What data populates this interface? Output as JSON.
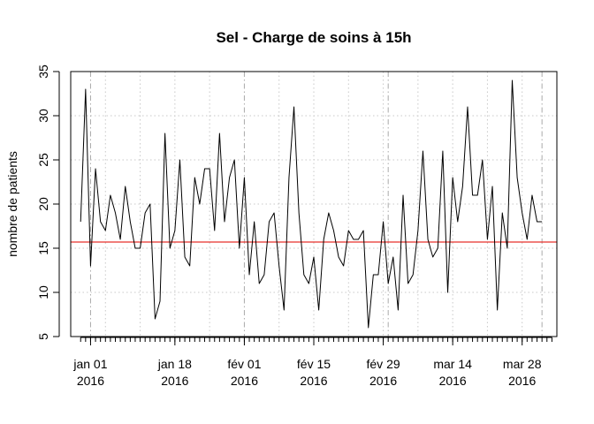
{
  "chart_data": {
    "type": "line",
    "title": "Sel - Charge de soins à 15h",
    "xlabel": "",
    "ylabel": "nombre de patients",
    "x_start": "2015-12-30",
    "x_end": "2016-04-03",
    "xlim": [
      "2015-12-28",
      "2016-04-04"
    ],
    "ylim": [
      5,
      35
    ],
    "y_ticks": [
      5,
      10,
      15,
      20,
      25,
      30,
      35
    ],
    "x_ticks": [
      {
        "date": "2016-01-01",
        "line1": "jan 01",
        "line2": "2016"
      },
      {
        "date": "2016-01-18",
        "line1": "jan 18",
        "line2": "2016"
      },
      {
        "date": "2016-02-01",
        "line1": "fév 01",
        "line2": "2016"
      },
      {
        "date": "2016-02-15",
        "line1": "fév 15",
        "line2": "2016"
      },
      {
        "date": "2016-02-29",
        "line1": "fév 29",
        "line2": "2016"
      },
      {
        "date": "2016-03-14",
        "line1": "mar 14",
        "line2": "2016"
      },
      {
        "date": "2016-03-28",
        "line1": "mar 28",
        "line2": "2016"
      }
    ],
    "grid": true,
    "line_color": "#000000",
    "reference_line": {
      "value": 15.7,
      "color": "#e8302a"
    },
    "series": [
      {
        "values": [
          18,
          33,
          13,
          24,
          18,
          17,
          21,
          19,
          16,
          22,
          18,
          15,
          15,
          19,
          20,
          7,
          9,
          28,
          15,
          17,
          25,
          14,
          13,
          23,
          20,
          24,
          24,
          17,
          28,
          18,
          23,
          25,
          15,
          23,
          12,
          18,
          11,
          12,
          18,
          19,
          13,
          8,
          23,
          31,
          19,
          12,
          11,
          14,
          8,
          16,
          19,
          17,
          14,
          13,
          17,
          16,
          16,
          17,
          6,
          12,
          12,
          18,
          11,
          14,
          8,
          21,
          11,
          12,
          17,
          26,
          16,
          14,
          15,
          26,
          10,
          23,
          18,
          22,
          31,
          21,
          21,
          25,
          16,
          22,
          8,
          19,
          15,
          34,
          23,
          19,
          16,
          21,
          18,
          18
        ]
      }
    ]
  }
}
